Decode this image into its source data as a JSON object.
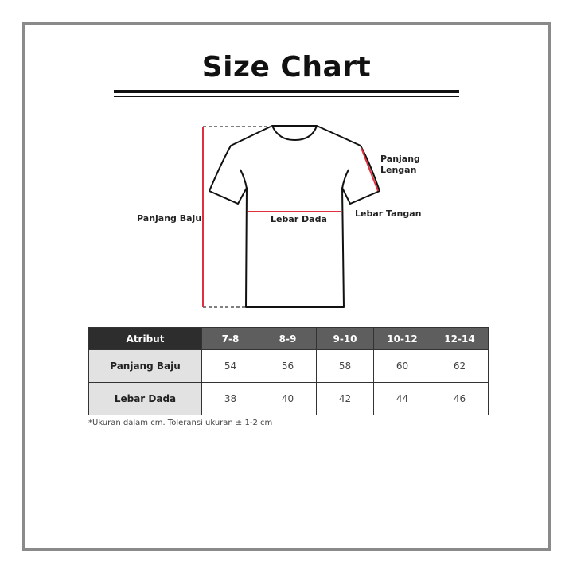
{
  "title": "Size Chart",
  "diagram_labels": {
    "panjang_baju": "Panjang Baju",
    "lebar_dada": "Lebar Dada",
    "lebar_tangan": "Lebar Tangan",
    "panjang_lengan_1": "Panjang",
    "panjang_lengan_2": "Lengan"
  },
  "colors": {
    "measure_line": "#e0303f",
    "header_dark": "#2d2d2d",
    "header": "#5e5e5e",
    "row_label_bg": "#e2e2e2",
    "frame": "#8a8a8a"
  },
  "table": {
    "headers": [
      "Atribut",
      "7-8",
      "8-9",
      "9-10",
      "10-12",
      "12-14"
    ],
    "rows": [
      {
        "label": "Panjang Baju",
        "values": [
          "54",
          "56",
          "58",
          "60",
          "62"
        ]
      },
      {
        "label": "Lebar Dada",
        "values": [
          "38",
          "40",
          "42",
          "44",
          "46"
        ]
      }
    ]
  },
  "note": "*Ukuran dalam cm. Toleransi ukuran ± 1-2 cm"
}
